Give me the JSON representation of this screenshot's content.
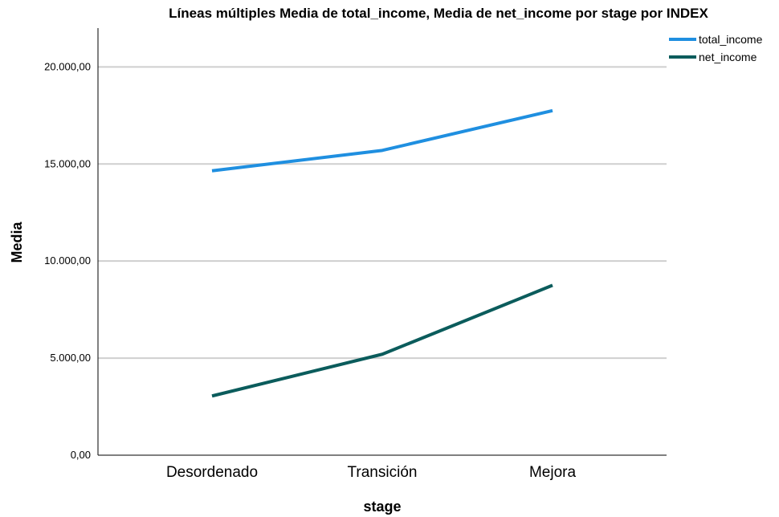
{
  "chart_data": {
    "type": "line",
    "title": "Líneas múltiples Media de total_income, Media de net_income por stage por INDEX",
    "xlabel": "stage",
    "ylabel": "Media",
    "categories": [
      "Desordenado",
      "Transición",
      "Mejora"
    ],
    "series": [
      {
        "name": "total_income",
        "values": [
          14650,
          15700,
          17750
        ],
        "color": "#1f8fe0"
      },
      {
        "name": "net_income",
        "values": [
          3050,
          5200,
          8750
        ],
        "color": "#0b5c5c"
      }
    ],
    "ylim": [
      0,
      22000
    ],
    "yticks": [
      0,
      5000,
      10000,
      15000,
      20000
    ],
    "ytick_labels": [
      "0,00",
      "5.000,00",
      "10.000,00",
      "15.000,00",
      "20.000,00"
    ],
    "grid": true,
    "legend": "top-right"
  }
}
